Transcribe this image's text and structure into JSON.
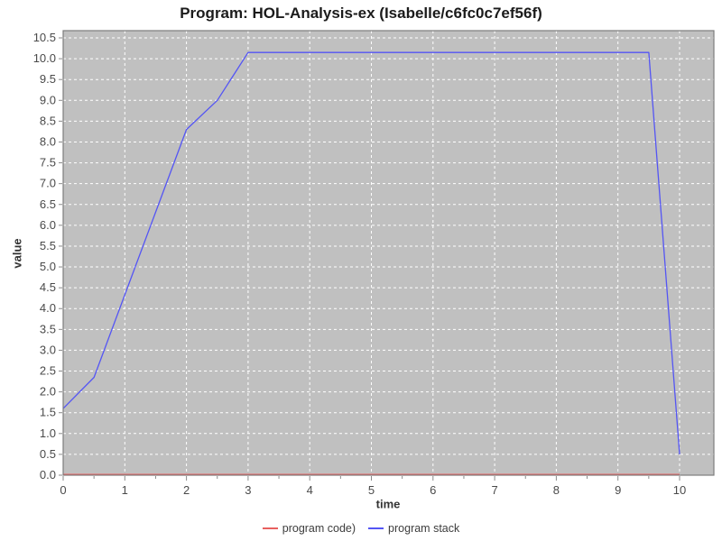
{
  "page": {
    "background": "#ffffff"
  },
  "chart_data": {
    "type": "line",
    "title": "Program: HOL-Analysis-ex (Isabelle/c6fc0c7ef56f)",
    "xlabel": "time",
    "ylabel": "value",
    "xlim": [
      0,
      10.56
    ],
    "ylim": [
      0,
      10.67
    ],
    "x_tick_labels": [
      "0",
      "1",
      "2",
      "3",
      "4",
      "5",
      "6",
      "7",
      "8",
      "9",
      "10"
    ],
    "x_minor_ticks": [
      0.5,
      1.5,
      2.5,
      3.5,
      4.5,
      5.5,
      6.5,
      7.5,
      8.5,
      9.5
    ],
    "y_tick_labels": [
      "0.0",
      "0.5",
      "1.0",
      "1.5",
      "2.0",
      "2.5",
      "3.0",
      "3.5",
      "4.0",
      "4.5",
      "5.0",
      "5.5",
      "6.0",
      "6.5",
      "7.0",
      "7.5",
      "8.0",
      "8.5",
      "9.0",
      "9.5",
      "10.0",
      "10.5"
    ],
    "grid": {
      "color": "#ffffff",
      "style": "dashed",
      "x_lines": [
        1,
        2,
        3,
        4,
        5,
        6,
        7,
        8,
        9,
        10
      ],
      "y_lines": [
        0.5,
        1.0,
        1.5,
        2.0,
        2.5,
        3.0,
        3.5,
        4.0,
        4.5,
        5.0,
        5.5,
        6.0,
        6.5,
        7.0,
        7.5,
        8.0,
        8.5,
        9.0,
        9.5,
        10.0,
        10.5
      ]
    },
    "plot_background": "#c0c0c0",
    "plot_border_color": "#7d7d7d",
    "tick_color": "#8a8a8a",
    "tick_label_color": "#4a4a4a",
    "legend_position": "bottom",
    "series": [
      {
        "name": "program code)",
        "color": "#e8605f",
        "points": [
          [
            0,
            0.02
          ],
          [
            10,
            0.02
          ]
        ]
      },
      {
        "name": "program stack",
        "color": "#5455f4",
        "points": [
          [
            0,
            1.6
          ],
          [
            0.5,
            2.35
          ],
          [
            2,
            8.3
          ],
          [
            2.5,
            9.0
          ],
          [
            3,
            10.15
          ],
          [
            9.5,
            10.15
          ],
          [
            10,
            0.5
          ]
        ]
      }
    ]
  }
}
